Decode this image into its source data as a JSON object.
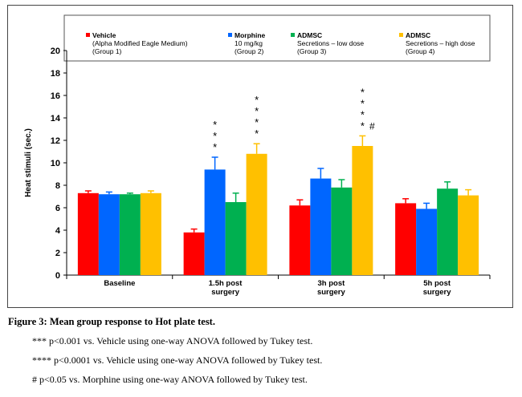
{
  "chart_data": {
    "type": "bar",
    "ylabel": "Heat stimuli (sec.)",
    "xlabel": "",
    "title": "",
    "ylim": [
      0,
      20
    ],
    "yticks": [
      "0",
      "2",
      "4",
      "6",
      "8",
      "10",
      "12",
      "14",
      "16",
      "18",
      "20"
    ],
    "categories": [
      "Baseline",
      "1.5h post surgery",
      "3h post surgery",
      "5h post surgery"
    ],
    "category_lines": [
      [
        "Baseline"
      ],
      [
        "1.5h post",
        "surgery"
      ],
      [
        "3h post",
        "surgery"
      ],
      [
        "5h post",
        "surgery"
      ]
    ],
    "legend_placement": "top",
    "series": [
      {
        "name": "Vehicle (Alpha Modified Eagle Medium) (Group 1)",
        "legend_lines": [
          "Vehicle",
          "(Alpha Modified Eagle Medium)",
          "(Group 1)"
        ],
        "color": "#ff0000",
        "values": [
          7.3,
          3.8,
          6.2,
          6.4
        ],
        "errors": [
          0.2,
          0.3,
          0.5,
          0.4
        ]
      },
      {
        "name": "Morphine 10 mg/kg (Group 2)",
        "legend_lines": [
          "Morphine",
          "10 mg/kg",
          "(Group 2)"
        ],
        "color": "#0066ff",
        "values": [
          7.2,
          9.4,
          8.6,
          5.9
        ],
        "errors": [
          0.2,
          1.1,
          0.9,
          0.5
        ]
      },
      {
        "name": "ADMSC Secretions – low dose (Group 3)",
        "legend_lines": [
          "ADMSC",
          "Secretions – low dose",
          "(Group 3)"
        ],
        "color": "#00b050",
        "values": [
          7.2,
          6.5,
          7.8,
          7.7
        ],
        "errors": [
          0.1,
          0.8,
          0.7,
          0.6
        ]
      },
      {
        "name": "ADMSC Secretions – high dose (Group 4)",
        "legend_lines": [
          "ADMSC",
          "Secretions – high dose",
          "(Group 4)"
        ],
        "color": "#ffc000",
        "values": [
          7.3,
          10.8,
          11.5,
          7.1
        ],
        "errors": [
          0.2,
          0.9,
          0.9,
          0.5
        ]
      }
    ],
    "annotations": [
      {
        "category": 1,
        "series": 1,
        "stars": "***"
      },
      {
        "category": 1,
        "series": 3,
        "stars": "****"
      },
      {
        "category": 2,
        "series": 3,
        "stars": "****",
        "mark": "#"
      }
    ]
  },
  "caption": {
    "title": "Figure 3: Mean group response to Hot plate test.",
    "notes": [
      "*** p<0.001 vs. Vehicle using one-way ANOVA followed by Tukey test.",
      "**** p<0.0001 vs. Vehicle using one-way ANOVA followed by Tukey test.",
      "# p<0.05 vs. Morphine using one-way ANOVA followed by Tukey test."
    ]
  }
}
